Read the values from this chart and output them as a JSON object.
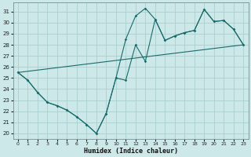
{
  "xlabel": "Humidex (Indice chaleur)",
  "bg_color": "#cce8e8",
  "grid_color": "#aacfcf",
  "line_color": "#1a6b6b",
  "xlim": [
    -0.5,
    23.5
  ],
  "ylim": [
    19.5,
    31.8
  ],
  "x_ticks": [
    0,
    1,
    2,
    3,
    4,
    5,
    6,
    7,
    8,
    9,
    10,
    11,
    12,
    13,
    14,
    15,
    16,
    17,
    18,
    19,
    20,
    21,
    22,
    23
  ],
  "y_ticks": [
    20,
    21,
    22,
    23,
    24,
    25,
    26,
    27,
    28,
    29,
    30,
    31
  ],
  "series1_x": [
    0,
    1,
    2,
    3,
    4,
    5,
    6,
    7,
    8,
    9,
    10,
    11,
    12,
    13,
    14,
    15,
    16,
    17,
    18,
    19,
    20,
    21,
    22,
    23
  ],
  "series1_y": [
    25.5,
    24.8,
    23.7,
    22.8,
    22.5,
    22.1,
    21.5,
    20.8,
    20.0,
    21.8,
    25.0,
    24.8,
    28.0,
    26.5,
    30.3,
    28.4,
    28.8,
    29.1,
    29.3,
    31.2,
    30.1,
    30.2,
    29.4,
    28.0
  ],
  "series2_x": [
    0,
    1,
    2,
    3,
    4,
    5,
    6,
    7,
    8,
    9,
    10,
    11,
    12,
    13,
    14,
    15,
    16,
    17,
    18,
    19,
    20,
    21,
    22,
    23
  ],
  "series2_y": [
    25.5,
    24.8,
    23.7,
    22.8,
    22.5,
    22.1,
    21.5,
    20.8,
    20.0,
    21.8,
    25.0,
    28.5,
    30.6,
    31.3,
    30.3,
    28.4,
    28.8,
    29.1,
    29.3,
    31.2,
    30.1,
    30.2,
    29.4,
    28.0
  ],
  "trend_x": [
    0,
    23
  ],
  "trend_y": [
    25.5,
    28.0
  ]
}
